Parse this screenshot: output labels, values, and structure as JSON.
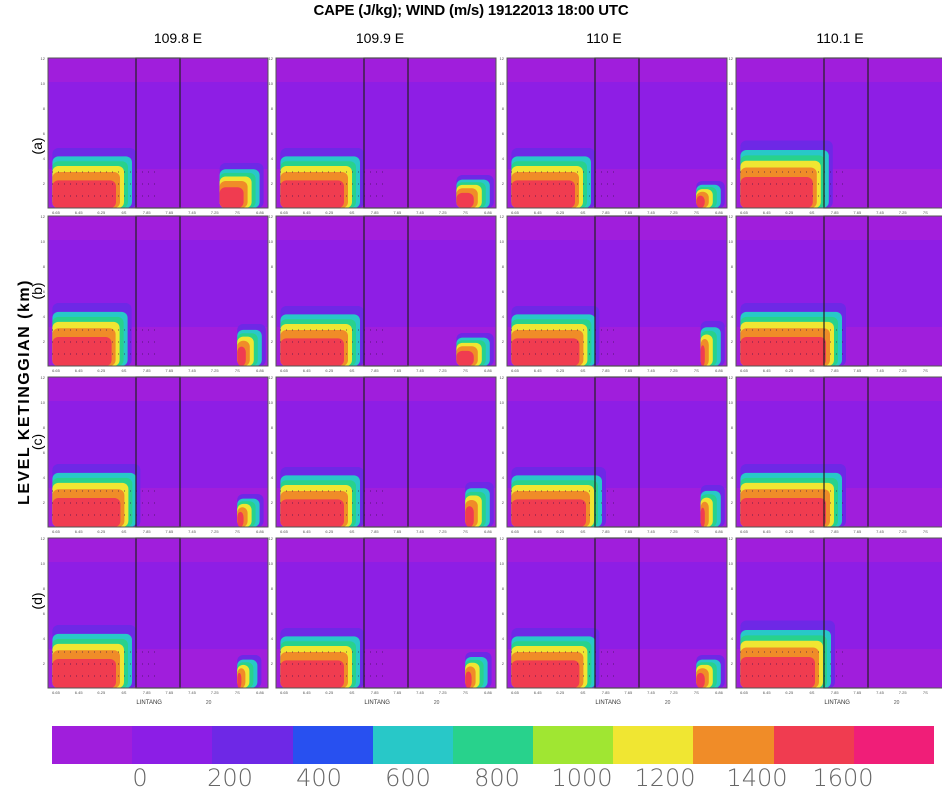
{
  "figure": {
    "title": "CAPE (J/kg); WIND (m/s) 19122013 18:00 UTC",
    "ylabel": "LEVEL KETINGGIAN (km)",
    "row_labels": [
      "(a)",
      "(b)",
      "(c)",
      "(d)"
    ],
    "xlabel": "LINTANG",
    "wind_ref": "20"
  },
  "chart_data": {
    "type": "heatmap",
    "columns": [
      "109.8 E",
      "109.9 E",
      "110 E",
      "110.1 E"
    ],
    "rows": [
      "(a)",
      "(b)",
      "(c)",
      "(d)"
    ],
    "x_ticks": [
      "6.65",
      "6.45",
      "6.25",
      "6S",
      "7.85",
      "7.65",
      "7.45",
      "7.25",
      "7S",
      "6.86"
    ],
    "y_ticks": [
      "2",
      "4",
      "6",
      "8",
      "10",
      "12"
    ],
    "ylim": [
      0,
      12
    ],
    "colorbar": {
      "ticks": [
        "0",
        "200",
        "400",
        "600",
        "800",
        "1000",
        "1200",
        "1400",
        "1600"
      ],
      "colors": [
        "#a01edc",
        "#8c1ee6",
        "#6e28e6",
        "#2850f0",
        "#28c8c8",
        "#28d28c",
        "#a0e632",
        "#f0e632",
        "#f08c28",
        "#f03c50",
        "#f01e78"
      ]
    }
  }
}
